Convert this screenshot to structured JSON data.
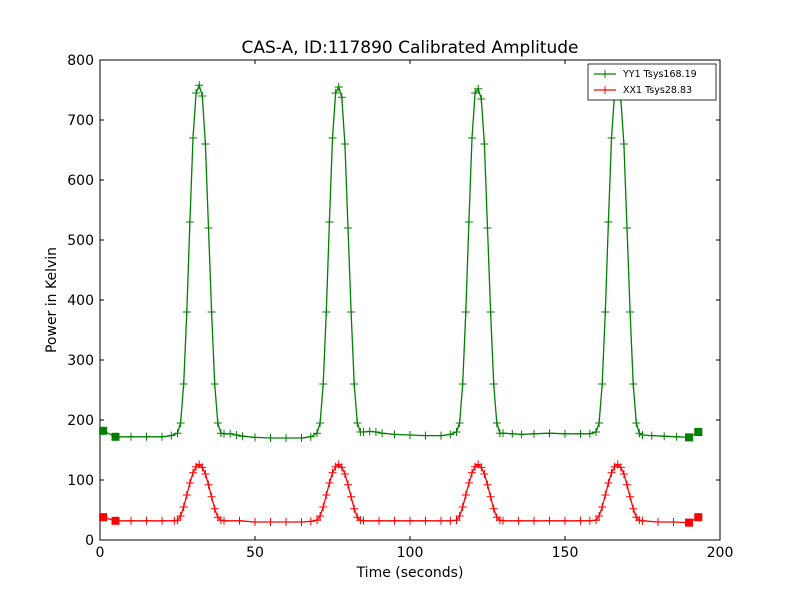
{
  "chart_data": {
    "type": "line",
    "title": "CAS-A, ID:117890 Calibrated Amplitude",
    "xlabel": "Time (seconds)",
    "ylabel": "Power in Kelvin",
    "xlim": [
      0,
      200
    ],
    "ylim": [
      0,
      800
    ],
    "xticks": [
      0,
      50,
      100,
      150,
      200
    ],
    "yticks": [
      0,
      100,
      200,
      300,
      400,
      500,
      600,
      700,
      800
    ],
    "grid": false,
    "legend_position": "top-right",
    "series": [
      {
        "name": "YY1 Tsys168.19",
        "color": "#008000",
        "marker": "+",
        "points": [
          [
            1,
            182
          ],
          [
            5,
            172
          ],
          [
            10,
            172
          ],
          [
            15,
            172
          ],
          [
            20,
            172
          ],
          [
            23,
            174
          ],
          [
            25,
            178
          ],
          [
            26,
            195
          ],
          [
            27,
            260
          ],
          [
            28,
            380
          ],
          [
            29,
            530
          ],
          [
            30,
            670
          ],
          [
            31,
            745
          ],
          [
            32,
            758
          ],
          [
            33,
            740
          ],
          [
            34,
            660
          ],
          [
            35,
            520
          ],
          [
            36,
            380
          ],
          [
            37,
            260
          ],
          [
            38,
            195
          ],
          [
            39,
            178
          ],
          [
            40,
            177
          ],
          [
            42,
            177
          ],
          [
            44,
            175
          ],
          [
            46,
            173
          ],
          [
            50,
            171
          ],
          [
            55,
            170
          ],
          [
            60,
            170
          ],
          [
            65,
            170
          ],
          [
            68,
            172
          ],
          [
            70,
            178
          ],
          [
            71,
            195
          ],
          [
            72,
            260
          ],
          [
            73,
            380
          ],
          [
            74,
            530
          ],
          [
            75,
            670
          ],
          [
            76,
            745
          ],
          [
            77,
            755
          ],
          [
            78,
            738
          ],
          [
            79,
            660
          ],
          [
            80,
            520
          ],
          [
            81,
            380
          ],
          [
            82,
            260
          ],
          [
            83,
            195
          ],
          [
            84,
            180
          ],
          [
            85,
            180
          ],
          [
            87,
            181
          ],
          [
            89,
            180
          ],
          [
            91,
            178
          ],
          [
            95,
            176
          ],
          [
            100,
            175
          ],
          [
            105,
            174
          ],
          [
            110,
            174
          ],
          [
            113,
            176
          ],
          [
            115,
            180
          ],
          [
            116,
            195
          ],
          [
            117,
            260
          ],
          [
            118,
            380
          ],
          [
            119,
            530
          ],
          [
            120,
            670
          ],
          [
            121,
            745
          ],
          [
            122,
            752
          ],
          [
            123,
            735
          ],
          [
            124,
            660
          ],
          [
            125,
            520
          ],
          [
            126,
            380
          ],
          [
            127,
            260
          ],
          [
            128,
            195
          ],
          [
            129,
            178
          ],
          [
            130,
            178
          ],
          [
            133,
            177
          ],
          [
            136,
            176
          ],
          [
            140,
            177
          ],
          [
            145,
            178
          ],
          [
            150,
            177
          ],
          [
            155,
            177
          ],
          [
            158,
            177
          ],
          [
            160,
            180
          ],
          [
            161,
            195
          ],
          [
            162,
            260
          ],
          [
            163,
            380
          ],
          [
            164,
            530
          ],
          [
            165,
            670
          ],
          [
            166,
            745
          ],
          [
            167,
            752
          ],
          [
            168,
            735
          ],
          [
            169,
            660
          ],
          [
            170,
            520
          ],
          [
            171,
            380
          ],
          [
            172,
            260
          ],
          [
            173,
            195
          ],
          [
            174,
            178
          ],
          [
            175,
            175
          ],
          [
            178,
            174
          ],
          [
            182,
            173
          ],
          [
            186,
            172
          ],
          [
            190,
            171
          ],
          [
            193,
            180
          ]
        ]
      },
      {
        "name": "XX1 Tsys28.83",
        "color": "#ff0000",
        "marker": "+",
        "points": [
          [
            1,
            38
          ],
          [
            5,
            32
          ],
          [
            10,
            32
          ],
          [
            15,
            32
          ],
          [
            20,
            32
          ],
          [
            24,
            32
          ],
          [
            25,
            33
          ],
          [
            26,
            40
          ],
          [
            27,
            55
          ],
          [
            28,
            75
          ],
          [
            29,
            95
          ],
          [
            30,
            112
          ],
          [
            31,
            122
          ],
          [
            32,
            126
          ],
          [
            33,
            121
          ],
          [
            34,
            110
          ],
          [
            35,
            92
          ],
          [
            36,
            72
          ],
          [
            37,
            52
          ],
          [
            38,
            38
          ],
          [
            39,
            33
          ],
          [
            40,
            32
          ],
          [
            45,
            32
          ],
          [
            50,
            30
          ],
          [
            55,
            30
          ],
          [
            60,
            30
          ],
          [
            65,
            30
          ],
          [
            68,
            31
          ],
          [
            70,
            33
          ],
          [
            71,
            40
          ],
          [
            72,
            55
          ],
          [
            73,
            75
          ],
          [
            74,
            95
          ],
          [
            75,
            112
          ],
          [
            76,
            122
          ],
          [
            77,
            126
          ],
          [
            78,
            121
          ],
          [
            79,
            110
          ],
          [
            80,
            92
          ],
          [
            81,
            72
          ],
          [
            82,
            52
          ],
          [
            83,
            38
          ],
          [
            84,
            33
          ],
          [
            85,
            32
          ],
          [
            90,
            32
          ],
          [
            95,
            32
          ],
          [
            100,
            32
          ],
          [
            105,
            32
          ],
          [
            110,
            32
          ],
          [
            113,
            32
          ],
          [
            115,
            33
          ],
          [
            116,
            40
          ],
          [
            117,
            55
          ],
          [
            118,
            75
          ],
          [
            119,
            95
          ],
          [
            120,
            112
          ],
          [
            121,
            122
          ],
          [
            122,
            126
          ],
          [
            123,
            121
          ],
          [
            124,
            110
          ],
          [
            125,
            92
          ],
          [
            126,
            72
          ],
          [
            127,
            52
          ],
          [
            128,
            38
          ],
          [
            129,
            33
          ],
          [
            130,
            32
          ],
          [
            135,
            32
          ],
          [
            140,
            32
          ],
          [
            145,
            32
          ],
          [
            150,
            32
          ],
          [
            155,
            32
          ],
          [
            158,
            32
          ],
          [
            160,
            33
          ],
          [
            161,
            40
          ],
          [
            162,
            55
          ],
          [
            163,
            75
          ],
          [
            164,
            95
          ],
          [
            165,
            112
          ],
          [
            166,
            122
          ],
          [
            167,
            126
          ],
          [
            168,
            121
          ],
          [
            169,
            110
          ],
          [
            170,
            92
          ],
          [
            171,
            72
          ],
          [
            172,
            52
          ],
          [
            173,
            38
          ],
          [
            174,
            33
          ],
          [
            175,
            32
          ],
          [
            180,
            30
          ],
          [
            185,
            30
          ],
          [
            190,
            29
          ],
          [
            193,
            38
          ]
        ],
        "square_markers": [
          [
            1,
            38
          ],
          [
            5,
            32
          ],
          [
            190,
            29
          ],
          [
            193,
            38
          ]
        ]
      }
    ]
  }
}
